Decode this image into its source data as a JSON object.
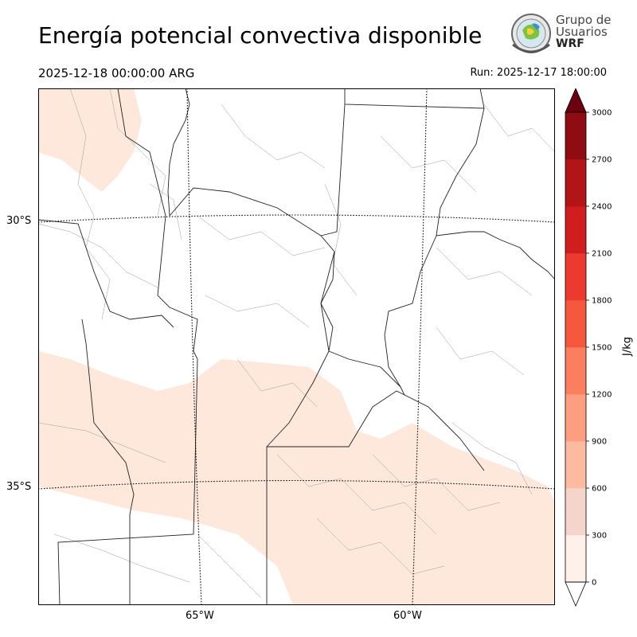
{
  "title": "Energía potencial convectiva disponible",
  "valid_time": "2025-12-18 00:00:00 ARG",
  "run_time": "Run: 2025-12-17 18:00:00",
  "logo": {
    "line1": "Grupo de",
    "line2": "Usuarios",
    "line3": "WRF"
  },
  "map": {
    "lat_labels": [
      "30°S",
      "35°S"
    ],
    "lon_labels": [
      "65°W",
      "60°W"
    ],
    "field_color": "#fee8dc",
    "field_color_light": "#fff0ea"
  },
  "colorbar": {
    "label": "J/kg",
    "levels": [
      0,
      300,
      600,
      900,
      1200,
      1500,
      1800,
      2100,
      2400,
      2700,
      3000
    ],
    "tick_labels": [
      "0",
      "300",
      "600",
      "900",
      "1200",
      "1500",
      "1800",
      "2100",
      "2400",
      "2700",
      "3000"
    ],
    "colors": [
      "#fff0ea",
      "#f5d4cb",
      "#fcbba1",
      "#fc9e80",
      "#fb7e5f",
      "#f6583e",
      "#ec3b2e",
      "#d01e1f",
      "#b11518",
      "#8f0c12"
    ],
    "over_color": "#6b010e",
    "under_color": "#ffffff"
  }
}
